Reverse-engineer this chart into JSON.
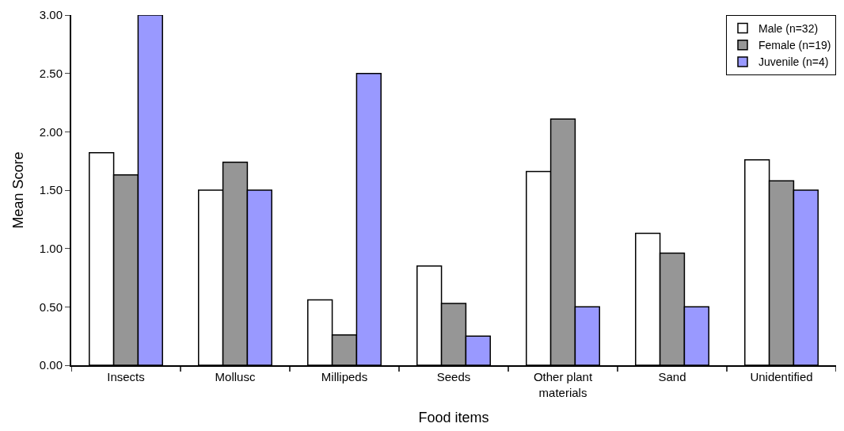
{
  "chart_data": {
    "type": "bar",
    "xlabel": "Food items",
    "ylabel": "Mean Score",
    "categories": [
      "Insects",
      "Mollusc",
      "Millipeds",
      "Seeds",
      "Other plant\nmaterials",
      "Sand",
      "Unidentified"
    ],
    "series": [
      {
        "name": "Male (n=32)",
        "color": "#ffffff",
        "values": [
          1.82,
          1.5,
          0.56,
          0.85,
          1.66,
          1.13,
          1.76
        ]
      },
      {
        "name": "Female (n=19)",
        "color": "#969696",
        "values": [
          1.63,
          1.74,
          0.26,
          0.53,
          2.11,
          0.96,
          1.58
        ]
      },
      {
        "name": "Juvenile (n=4)",
        "color": "#9999ff",
        "values": [
          3.0,
          1.5,
          2.5,
          0.25,
          0.5,
          0.5,
          1.5
        ]
      }
    ],
    "ylim": [
      0,
      3
    ],
    "yticks": [
      {
        "value": 0,
        "label": "0.00"
      },
      {
        "value": 0.5,
        "label": "0.50"
      },
      {
        "value": 1,
        "label": "1.00"
      },
      {
        "value": 1.5,
        "label": "1.50"
      },
      {
        "value": 2,
        "label": "2.00"
      },
      {
        "value": 2.5,
        "label": "2.50"
      },
      {
        "value": 3,
        "label": "3.00"
      }
    ],
    "grid": false,
    "legend": "top right"
  }
}
